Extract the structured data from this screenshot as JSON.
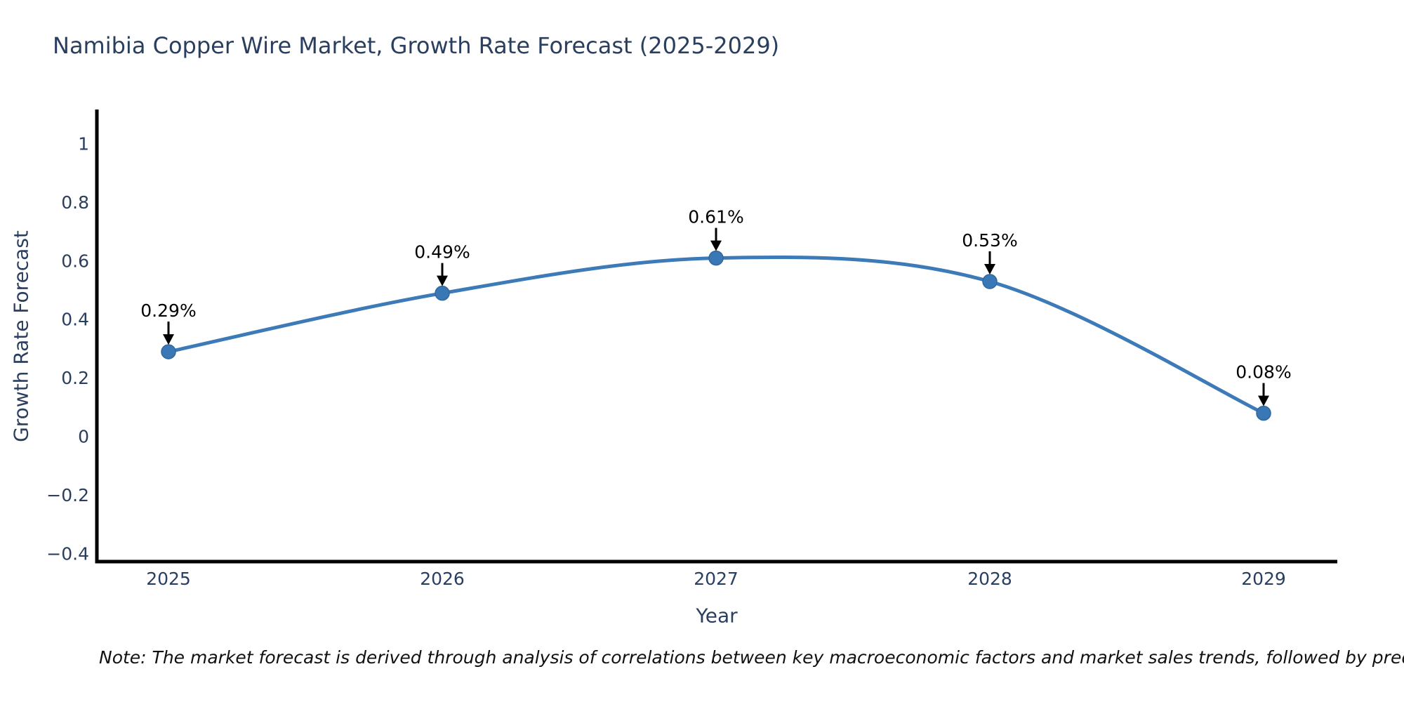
{
  "figure": {
    "note": "Note: The market forecast is derived through analysis of correlations between key macroeconomic factors and market sales trends, followed by predictive modeling to project future sa"
  },
  "chart_data": {
    "type": "line",
    "line_shape": "spline",
    "title": "Namibia Copper Wire Market, Growth Rate Forecast (2025-2029)",
    "xlabel": "Year",
    "ylabel": "Growth Rate Forecast",
    "x": [
      2025,
      2026,
      2027,
      2028,
      2029
    ],
    "values": [
      0.29,
      0.49,
      0.61,
      0.53,
      0.08
    ],
    "point_labels": [
      "0.29%",
      "0.49%",
      "0.61%",
      "0.53%",
      "0.08%"
    ],
    "xtick_labels": [
      "2025",
      "2026",
      "2027",
      "2028",
      "2029"
    ],
    "ytick_values": [
      1,
      0.8,
      0.6,
      0.4,
      0.2,
      0,
      -0.2,
      -0.4
    ],
    "ytick_labels": [
      "1",
      "0.8",
      "0.6",
      "0.4",
      "0.2",
      "0",
      "−0.2",
      "−0.4"
    ],
    "ylim": [
      -0.43,
      1.11
    ],
    "grid": false,
    "legend": "none",
    "colors": {
      "line": "#3d7ab8",
      "marker_fill": "#3a77b5",
      "marker_edge": "#30689f",
      "annotation": "#000000",
      "axis": "#000000",
      "text": "#2a3f5f"
    }
  }
}
